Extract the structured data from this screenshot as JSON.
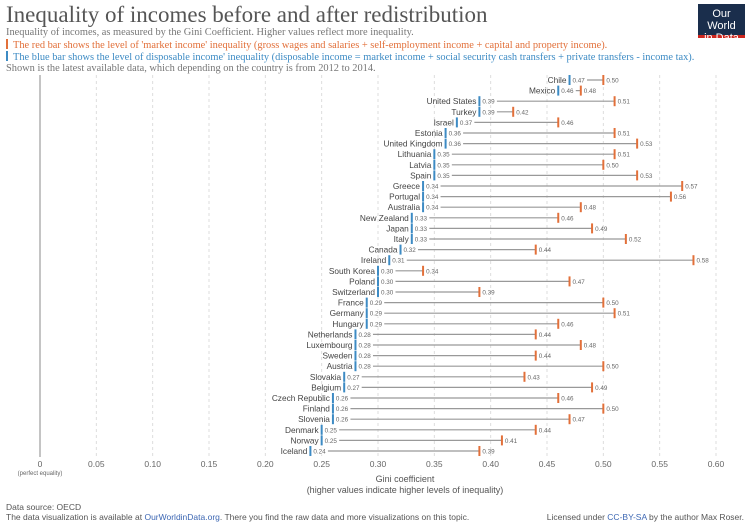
{
  "title": "Inequality of incomes before and after redistribution",
  "subtitle": "Inequality of incomes, as measured by the Gini Coefficient. Higher values reflect more inequality.",
  "red_note": "The red bar shows the level of 'market income' inequality (gross wages and salaries + self-employment income + capital and property income).",
  "blue_note": "The blue bar shows the level of disposable income' inequality (disposable income = market income + social security cash transfers + private transfers - income tax).",
  "period_note": "Shown is the latest available data, which depending on the country is from 2012 to 2014.",
  "logo": "Our World in Data",
  "footer": {
    "source": "Data source: OECD",
    "available": "The data visualization is available at ",
    "link": "OurWorldinData.org",
    "rest": ". There you find the raw data and more visualizations on this topic.",
    "license_pre": "Licensed under ",
    "license": "CC-BY-SA",
    "license_post": " by the author Max Roser."
  },
  "colors": {
    "market": "#e2703a",
    "disposable": "#3d8bc4",
    "arrow": "#999999"
  },
  "chart_data": {
    "type": "dumbbell",
    "xlabel": "Gini coefficient",
    "xlabel2": "(higher values indicate higher levels of inequality)",
    "zero_note": "(perfect equality)",
    "xlim": [
      0,
      0.6
    ],
    "ticks": [
      "0",
      "0.05",
      "0.10",
      "0.15",
      "0.20",
      "0.25",
      "0.30",
      "0.35",
      "0.40",
      "0.45",
      "0.50",
      "0.55",
      "0.60"
    ],
    "grid": true,
    "rows": [
      {
        "country": "Chile",
        "disposable": 0.47,
        "market": 0.5
      },
      {
        "country": "Mexico",
        "disposable": 0.46,
        "market": 0.48
      },
      {
        "country": "United States",
        "disposable": 0.39,
        "market": 0.51
      },
      {
        "country": "Turkey",
        "disposable": 0.39,
        "market": 0.42
      },
      {
        "country": "Israel",
        "disposable": 0.37,
        "market": 0.46
      },
      {
        "country": "Estonia",
        "disposable": 0.36,
        "market": 0.51
      },
      {
        "country": "United Kingdom",
        "disposable": 0.36,
        "market": 0.53
      },
      {
        "country": "Lithuania",
        "disposable": 0.35,
        "market": 0.51
      },
      {
        "country": "Latvia",
        "disposable": 0.35,
        "market": 0.5
      },
      {
        "country": "Spain",
        "disposable": 0.35,
        "market": 0.53
      },
      {
        "country": "Greece",
        "disposable": 0.34,
        "market": 0.57
      },
      {
        "country": "Portugal",
        "disposable": 0.34,
        "market": 0.56
      },
      {
        "country": "Australia",
        "disposable": 0.34,
        "market": 0.48
      },
      {
        "country": "New Zealand",
        "disposable": 0.33,
        "market": 0.46
      },
      {
        "country": "Japan",
        "disposable": 0.33,
        "market": 0.49
      },
      {
        "country": "Italy",
        "disposable": 0.33,
        "market": 0.52
      },
      {
        "country": "Canada",
        "disposable": 0.32,
        "market": 0.44
      },
      {
        "country": "Ireland",
        "disposable": 0.31,
        "market": 0.58
      },
      {
        "country": "South Korea",
        "disposable": 0.3,
        "market": 0.34
      },
      {
        "country": "Poland",
        "disposable": 0.3,
        "market": 0.47
      },
      {
        "country": "Switzerland",
        "disposable": 0.3,
        "market": 0.39
      },
      {
        "country": "France",
        "disposable": 0.29,
        "market": 0.5
      },
      {
        "country": "Germany",
        "disposable": 0.29,
        "market": 0.51
      },
      {
        "country": "Hungary",
        "disposable": 0.29,
        "market": 0.46
      },
      {
        "country": "Netherlands",
        "disposable": 0.28,
        "market": 0.44
      },
      {
        "country": "Luxembourg",
        "disposable": 0.28,
        "market": 0.48
      },
      {
        "country": "Sweden",
        "disposable": 0.28,
        "market": 0.44
      },
      {
        "country": "Austria",
        "disposable": 0.28,
        "market": 0.5
      },
      {
        "country": "Slovakia",
        "disposable": 0.27,
        "market": 0.43
      },
      {
        "country": "Belgium",
        "disposable": 0.27,
        "market": 0.49
      },
      {
        "country": "Czech Republic",
        "disposable": 0.26,
        "market": 0.46
      },
      {
        "country": "Finland",
        "disposable": 0.26,
        "market": 0.5
      },
      {
        "country": "Slovenia",
        "disposable": 0.26,
        "market": 0.47
      },
      {
        "country": "Denmark",
        "disposable": 0.25,
        "market": 0.44
      },
      {
        "country": "Norway",
        "disposable": 0.25,
        "market": 0.41
      },
      {
        "country": "Iceland",
        "disposable": 0.24,
        "market": 0.39
      }
    ]
  }
}
